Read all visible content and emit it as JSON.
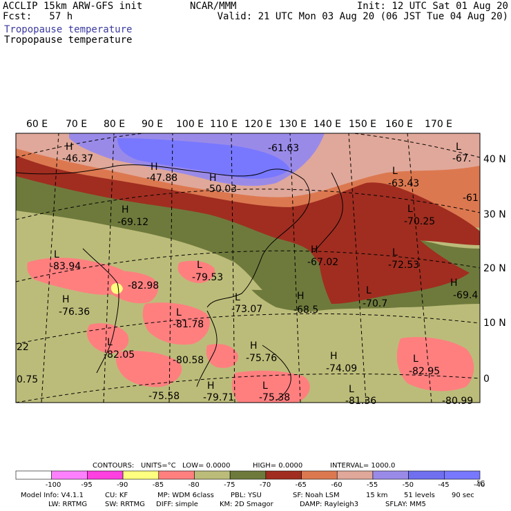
{
  "header": {
    "line1_left": "ACCLIP 15km ARW-GFS init",
    "line2_left": "Fcst:   57 h",
    "center": "NCAR/MMM",
    "line1_right": "Init: 12 UTC Sat 01 Aug 20",
    "line2_right": "Valid: 21 UTC Mon 03 Aug 20 (06 JST Tue 04 Aug 20)",
    "field_colored": "Tropopause temperature",
    "field_black": "Tropopause temperature"
  },
  "map": {
    "lon_labels": [
      "60 E",
      "70 E",
      "80 E",
      "90 E",
      "100 E",
      "110 E",
      "120 E",
      "130 E",
      "140 E",
      "150 E",
      "160 E",
      "170 E"
    ],
    "lat_labels": [
      "40 N",
      "30 N",
      "20 N",
      "10 N",
      "0"
    ],
    "pressure_labels": [
      {
        "type": "H",
        "value": "-46.37"
      },
      {
        "type": "H",
        "value": "-47.88"
      },
      {
        "type": "H",
        "value": "-50.03"
      },
      {
        "type": "",
        "value": "-61.63"
      },
      {
        "type": "L",
        "value": "-67."
      },
      {
        "type": "L",
        "value": "-63.43"
      },
      {
        "type": "",
        "value": "-61"
      },
      {
        "type": "H",
        "value": "-69.12"
      },
      {
        "type": "L",
        "value": "-70.25"
      },
      {
        "type": "L",
        "value": "-83.94"
      },
      {
        "type": "",
        "value": "-82.98"
      },
      {
        "type": "L",
        "value": "-79.53"
      },
      {
        "type": "H",
        "value": "-67.02"
      },
      {
        "type": "L",
        "value": "-72.53"
      },
      {
        "type": "H",
        "value": "-69.4"
      },
      {
        "type": "H",
        "value": "-76.36"
      },
      {
        "type": "L",
        "value": "-73.07"
      },
      {
        "type": "H",
        "value": "-68.5"
      },
      {
        "type": "L",
        "value": "-70.7"
      },
      {
        "type": "L",
        "value": "-81.78"
      },
      {
        "type": "L",
        "value": "-82.05"
      },
      {
        "type": "",
        "value": "-80.58"
      },
      {
        "type": "H",
        "value": "-75.76"
      },
      {
        "type": "H",
        "value": "-74.09"
      },
      {
        "type": "L",
        "value": "-82.95"
      },
      {
        "type": "",
        "value": "-75.58"
      },
      {
        "type": "H",
        "value": "-79.71"
      },
      {
        "type": "L",
        "value": "-75.38"
      },
      {
        "type": "L",
        "value": "-81.36"
      },
      {
        "type": "",
        "value": "-80.99"
      },
      {
        "type": "",
        "value": "22"
      },
      {
        "type": "",
        "value": "0.75"
      }
    ]
  },
  "legend": {
    "title_contours": "CONTOURS:",
    "title_units": "UNITS=°C",
    "title_low": "LOW=  0.0000",
    "title_high": "HIGH=  0.0000",
    "title_interval": "INTERVAL=   1000.0",
    "ticks": [
      "-100",
      "-95",
      "-90",
      "-85",
      "-80",
      "-75",
      "-70",
      "-65",
      "-60",
      "-55",
      "-50",
      "-45",
      "-40"
    ],
    "unit": "°C",
    "colors": [
      "#ffffff",
      "#ff80ff",
      "#ff40e0",
      "#ffff80",
      "#ff7f7f",
      "#bcbc7a",
      "#6e7a3c",
      "#a02d20",
      "#dc7850",
      "#e0a89a",
      "#9a8ae8",
      "#6f6ff0",
      "#7878ff"
    ]
  },
  "model_info": {
    "line1": {
      "info": "Model Info: V4.1.1",
      "cu": "CU: KF",
      "mp": "MP: WDM 6class",
      "pbl": "PBL: YSU",
      "sf": "SF: Noah LSM",
      "res": "15 km",
      "levels": "51 levels",
      "dt": "90 sec"
    },
    "line2": {
      "lw": "LW: RRTMG",
      "sw": "SW: RRTMG",
      "diff": "DIFF: simple",
      "km": "KM: 2D Smagor",
      "damp": "DAMP: Rayleigh3",
      "sflay": "SFLAY: MM5"
    }
  }
}
